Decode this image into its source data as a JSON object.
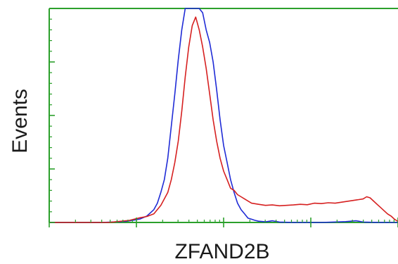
{
  "chart_data": {
    "type": "line",
    "title": "",
    "xlabel": "ZFAND2B",
    "ylabel": "Events",
    "x_scale": "log",
    "x_decades": 4,
    "xlim": [
      0,
      1
    ],
    "ylim": [
      0,
      1
    ],
    "grid": false,
    "legend": "none",
    "axis_color": "#2ca02c",
    "series": [
      {
        "color": "#1f2bd6",
        "x": [
          0.0,
          0.15,
          0.22,
          0.24,
          0.26,
          0.28,
          0.3,
          0.31,
          0.32,
          0.33,
          0.34,
          0.35,
          0.36,
          0.37,
          0.38,
          0.39,
          0.4,
          0.41,
          0.42,
          0.43,
          0.44,
          0.45,
          0.46,
          0.47,
          0.48,
          0.49,
          0.5,
          0.51,
          0.52,
          0.53,
          0.54,
          0.55,
          0.56,
          0.57,
          0.58,
          0.59,
          0.6,
          0.62,
          0.64,
          0.66,
          0.7,
          0.78,
          0.85,
          0.88,
          0.9,
          0.95,
          1.0
        ],
        "y": [
          0.0,
          0.0,
          0.005,
          0.01,
          0.016,
          0.03,
          0.06,
          0.09,
          0.14,
          0.2,
          0.3,
          0.45,
          0.6,
          0.76,
          0.9,
          1.0,
          1.0,
          1.0,
          1.0,
          1.0,
          0.98,
          0.9,
          0.84,
          0.75,
          0.62,
          0.48,
          0.36,
          0.28,
          0.2,
          0.14,
          0.09,
          0.06,
          0.04,
          0.02,
          0.015,
          0.01,
          0.006,
          0.003,
          0.008,
          0.002,
          0.0,
          0.0,
          0.004,
          0.008,
          0.002,
          0.0,
          0.0
        ]
      },
      {
        "color": "#d62020",
        "x": [
          0.0,
          0.17,
          0.23,
          0.26,
          0.28,
          0.3,
          0.32,
          0.34,
          0.35,
          0.36,
          0.37,
          0.38,
          0.39,
          0.4,
          0.41,
          0.42,
          0.43,
          0.44,
          0.45,
          0.46,
          0.47,
          0.48,
          0.49,
          0.5,
          0.51,
          0.52,
          0.53,
          0.54,
          0.55,
          0.56,
          0.57,
          0.58,
          0.6,
          0.62,
          0.64,
          0.66,
          0.68,
          0.7,
          0.72,
          0.74,
          0.76,
          0.78,
          0.8,
          0.82,
          0.84,
          0.86,
          0.88,
          0.9,
          0.91,
          0.92,
          0.93,
          0.94,
          0.95,
          0.96,
          0.97,
          0.98,
          0.99,
          1.0
        ],
        "y": [
          0.0,
          0.0,
          0.01,
          0.022,
          0.028,
          0.04,
          0.08,
          0.14,
          0.2,
          0.28,
          0.38,
          0.52,
          0.68,
          0.82,
          0.92,
          0.96,
          0.9,
          0.82,
          0.72,
          0.6,
          0.48,
          0.38,
          0.3,
          0.24,
          0.2,
          0.16,
          0.15,
          0.13,
          0.12,
          0.11,
          0.1,
          0.09,
          0.085,
          0.08,
          0.082,
          0.078,
          0.08,
          0.082,
          0.085,
          0.083,
          0.09,
          0.088,
          0.092,
          0.09,
          0.095,
          0.1,
          0.105,
          0.11,
          0.12,
          0.115,
          0.1,
          0.085,
          0.07,
          0.055,
          0.04,
          0.03,
          0.015,
          0.005
        ]
      }
    ]
  }
}
